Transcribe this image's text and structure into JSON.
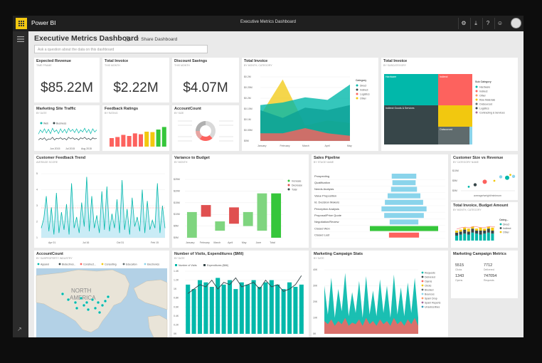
{
  "app": {
    "name": "Power BI",
    "window_title": "Executive Metrics Dashboard"
  },
  "topbar": {
    "icons": [
      "gear-icon",
      "download-icon",
      "help-icon",
      "smiley-icon"
    ],
    "gear": "⚙",
    "download": "⤓",
    "help": "?",
    "smiley": "☺"
  },
  "dashboard": {
    "title": "Executive Metrics Dashboard",
    "share_label": "Share Dashboard",
    "qa_placeholder": "Ask a question about the data on this dashboard"
  },
  "colors": {
    "teal": "#01b8aa",
    "dark": "#374649",
    "red": "#fd625e",
    "yellow": "#f2c80f",
    "gray": "#5f6b6d",
    "blue": "#8ad4eb",
    "orange": "#fe9666",
    "purple": "#a66999",
    "navy": "#3599b8",
    "green": "#35c63a"
  },
  "tiles": {
    "expected_revenue": {
      "title": "Expected Revenue",
      "subtitle": "TIME FRAME",
      "value": "$85.22M"
    },
    "total_invoice_card": {
      "title": "Total Invoice",
      "subtitle": "THIS MONTH",
      "value": "$2.22M"
    },
    "discount_savings": {
      "title": "Discount Savings",
      "subtitle": "THIS MONTH",
      "value": "$4.07M"
    },
    "marketing_site_traffic": {
      "title": "Marketing Site Traffic",
      "subtitle": "BY DATE"
    },
    "feedback_ratings": {
      "title": "Feedback Ratings",
      "subtitle": "BY RATING"
    },
    "account_count_donut": {
      "title": "AccountCount",
      "subtitle": "BY SIZE"
    },
    "total_invoice_area": {
      "title": "Total Invoice",
      "subtitle": "BY MONTH, CATEGORY"
    },
    "total_invoice_treemap": {
      "title": "Total Invoice",
      "subtitle": "BY SUBCATEGORY"
    },
    "customer_feedback_trend": {
      "title": "Customer Feedback Trend",
      "subtitle": "AVERAGE SCORE"
    },
    "variance_to_budget": {
      "title": "Variance to Budget",
      "subtitle": "BY MONTH"
    },
    "sales_pipeline": {
      "title": "Sales Pipeline",
      "subtitle": "BY STAGE NAME"
    },
    "customer_size_revenue": {
      "title": "Customer Size vs Revenue",
      "subtitle": "BY CATEGORY NAME"
    },
    "total_invoice_budget": {
      "title": "Total Invoice, Budget Amount",
      "subtitle": "BY MONTH, CATEGORY"
    },
    "account_count_map": {
      "title": "AccountCount",
      "subtitle": "BY SUBPROPERTY INDUSTRY"
    },
    "visits_expenditures": {
      "title": "Number of Visits, Expenditures ($Mil)",
      "subtitle": "BY DATE"
    },
    "marketing_campaign_stats": {
      "title": "Marketing Campaign Stats",
      "subtitle": "BY DATE"
    },
    "marketing_campaign_metrics": {
      "title": "Marketing Campaign Metrics"
    }
  },
  "traffic_legend": [
    "Web",
    "Business"
  ],
  "traffic_xticks": [
    "Jun 2015",
    "Jul 2015",
    "Aug 2015"
  ],
  "area_legend_title": "Category",
  "area_legend": [
    "Direct",
    "Indirect",
    "Logistics",
    "Other"
  ],
  "area_yticks": [
    "$0.2M",
    "$0.25M",
    "$0.2M",
    "$0.15M",
    "$0.1M",
    "$0.05M",
    "$0M"
  ],
  "area_xticks": [
    "January",
    "February",
    "March",
    "April",
    "May"
  ],
  "treemap_legend_title": "Sub Category",
  "treemap_legend": [
    "Hardware",
    "Indirect",
    "Other",
    "Raw Materials",
    "Outsourced",
    "Logistics",
    "Contracting & Services"
  ],
  "treemap_labels": [
    "Hardware",
    "Indirect",
    "Indirect Goods & Services",
    "Outsourced"
  ],
  "trend_yticks": [
    "5",
    "4",
    "3",
    "2",
    "1"
  ],
  "trend_xticks": [
    "Apr 01",
    "Jul 16",
    "Oct 31",
    "Feb 15"
  ],
  "variance_legend": [
    "Increase",
    "Decrease",
    "Total"
  ],
  "variance_yticks": [
    "$25M",
    "$20M",
    "$15M",
    "$10M",
    "$5M",
    "$0M"
  ],
  "variance_xticks": [
    "January",
    "February",
    "March",
    "April",
    "May",
    "June",
    "Total"
  ],
  "pipeline_stages": [
    "Prospecting",
    "Qualification",
    "Needs Analysis",
    "Value Proposition",
    "Id. Decision Makers",
    "Perception Analysis",
    "Proposal/Price Quote",
    "Negotiation/Review",
    "Closed Won",
    "Closed Lost"
  ],
  "scatter_yticks": [
    "$10M",
    "$5M",
    "$0M"
  ],
  "scatter_xlabel": "average/weight/minimum",
  "budget_legend_title": "Categ...",
  "budget_legend": [
    "Direct",
    "Indirect",
    "Other"
  ],
  "map_legend": [
    "Apparel",
    "Biotechnol...",
    "Construct...",
    "Consulting",
    "Education",
    "Electronics"
  ],
  "map_labels": [
    "NORTH",
    "AMERICA"
  ],
  "visits_legend": [
    "Number of Visits",
    "Expenditures ($Mil)"
  ],
  "visits_yticks": [
    "1.4K",
    "1.2K",
    "1K",
    "0.8K",
    "0.6K",
    "0.4K",
    "0.2K",
    "0K"
  ],
  "stats_legend": [
    "Requests",
    "Delivered",
    "Opens",
    "Clicks",
    "Blocked",
    "Bounces",
    "Spam Drop",
    "Spam Reports",
    "Unsubscribes"
  ],
  "stats_yticks": [
    "40K",
    "30K",
    "20K",
    "10K",
    "0K"
  ],
  "metrics": [
    {
      "value": "5515",
      "label": "Clicks"
    },
    {
      "value": "7712",
      "label": "Delivered"
    },
    {
      "value": "1343",
      "label": "Opens"
    },
    {
      "value": "747054",
      "label": "Requests"
    }
  ],
  "chart_data": [
    {
      "type": "line",
      "name": "marketing_site_traffic",
      "series": [
        {
          "name": "Web",
          "values": [
            42,
            58,
            48,
            62,
            46,
            60,
            44,
            64,
            50,
            58,
            44,
            62,
            48,
            60,
            46,
            64,
            52,
            60,
            48,
            62,
            46,
            58,
            50,
            64,
            48,
            60,
            44,
            62,
            50,
            58
          ]
        },
        {
          "name": "Business",
          "values": [
            20,
            26,
            22,
            28,
            18,
            24,
            22,
            30,
            20,
            26,
            24,
            28,
            22,
            26,
            20,
            30,
            24,
            28,
            22,
            26,
            20,
            28,
            24,
            30,
            22,
            26,
            20,
            28,
            24,
            26
          ]
        }
      ]
    },
    {
      "type": "bar",
      "name": "feedback_ratings",
      "values": [
        40,
        45,
        55,
        50,
        62,
        58,
        70,
        68,
        80,
        92
      ],
      "colors": [
        "#fd625e",
        "#fd625e",
        "#fd625e",
        "#fd625e",
        "#fd625e",
        "#fd625e",
        "#f2c80f",
        "#f2c80f",
        "#35c63a",
        "#35c63a"
      ]
    },
    {
      "type": "pie",
      "name": "account_count",
      "values": [
        38,
        22,
        15,
        25
      ],
      "colors": [
        "#d9d9d9",
        "#fd625e",
        "#e8a5a2",
        "#b0b0b0"
      ]
    },
    {
      "type": "area",
      "name": "total_invoice",
      "series": [
        {
          "name": "Direct",
          "values": [
            0.14,
            0.15,
            0.17,
            0.16,
            0.22
          ]
        },
        {
          "name": "Indirect",
          "values": [
            0.12,
            0.09,
            0.13,
            0.12,
            0.14
          ]
        },
        {
          "name": "Logistics",
          "values": [
            0.03,
            0.03,
            0.05,
            0.03,
            0.02
          ]
        },
        {
          "name": "Other",
          "values": [
            0.1,
            0.24,
            0.06,
            0.08,
            0.07
          ]
        }
      ],
      "ylim": [
        0,
        0.25
      ]
    },
    {
      "type": "line",
      "name": "customer_feedback_trend",
      "values": [
        1.6,
        2.2,
        3.6,
        1.4,
        2.9,
        1.2,
        3.8,
        1.3,
        2.6,
        1.5,
        3.1,
        1.2,
        4.4,
        1.6,
        2.3,
        1.3,
        3.2,
        1.7,
        4.8,
        1.4,
        3.6,
        1.6,
        2.4,
        1.3,
        3.9,
        1.5,
        4.2,
        1.4,
        2.5,
        1.6,
        3.4,
        1.3,
        4.6,
        1.5,
        2.8,
        1.2,
        3.5,
        1.7,
        2.3,
        1.4,
        4.0,
        1.3,
        3.3,
        1.5,
        2.1,
        1.6,
        4.4,
        1.3,
        3.0,
        1.6
      ],
      "ylim": [
        1,
        5
      ]
    },
    {
      "type": "bar",
      "name": "variance_to_budget",
      "categories": [
        "January",
        "February",
        "March",
        "April",
        "May",
        "June",
        "Total"
      ],
      "base": [
        0,
        9,
        3,
        6,
        5,
        3,
        0
      ],
      "values": [
        11,
        5,
        4,
        7,
        6,
        16,
        19
      ],
      "colors": [
        "#7fd57f",
        "#e05050",
        "#7fd57f",
        "#e05050",
        "#7fd57f",
        "#7fd57f",
        "#35c63a"
      ],
      "ylim": [
        0,
        25
      ]
    },
    {
      "type": "bar",
      "name": "sales_pipeline",
      "values": [
        36,
        34,
        38,
        48,
        56,
        66,
        58,
        42,
        100,
        44
      ],
      "colors": [
        "#8ad4eb",
        "#8ad4eb",
        "#8ad4eb",
        "#8ad4eb",
        "#8ad4eb",
        "#8ad4eb",
        "#8ad4eb",
        "#8ad4eb",
        "#35c63a",
        "#fd625e"
      ]
    },
    {
      "type": "scatter",
      "name": "customer_size_revenue",
      "x": [
        1,
        2,
        3.5,
        5,
        6,
        7,
        7.5,
        8
      ],
      "y": [
        2,
        3,
        4.5,
        5,
        7,
        6.5,
        8,
        7.2
      ],
      "ylim": [
        0,
        10
      ]
    },
    {
      "type": "bar",
      "name": "total_invoice_budget",
      "series": [
        {
          "name": "Direct",
          "values": [
            5,
            6,
            7,
            6,
            8,
            7,
            6,
            7,
            8,
            7
          ]
        },
        {
          "name": "Indirect",
          "values": [
            3,
            3,
            4,
            3,
            4,
            3,
            4,
            3,
            4,
            3
          ]
        },
        {
          "name": "Other",
          "values": [
            2,
            2,
            2,
            3,
            2,
            2,
            3,
            2,
            2,
            3
          ]
        }
      ]
    },
    {
      "type": "bar",
      "name": "visits_expenditures",
      "series": [
        {
          "name": "Number of Visits",
          "values": [
            1.1,
            1.0,
            1.2,
            1.15,
            1.05,
            1.25,
            1.1,
            1.2,
            1.0,
            1.15,
            1.1,
            1.2,
            1.05,
            1.15,
            1.2,
            1.1,
            1.0,
            1.15,
            1.05,
            1.1
          ]
        },
        {
          "name": "Expenditures ($Mil)",
          "values": [
            0.9,
            1.0,
            1.1,
            1.05,
            1.2,
            1.0,
            1.15,
            1.1,
            1.25,
            1.05,
            1.1,
            1.15,
            1.0,
            1.2,
            1.05,
            1.1,
            0.95,
            1.0,
            1.1,
            1.3
          ]
        }
      ],
      "ylim": [
        0,
        1.4
      ]
    },
    {
      "type": "area",
      "name": "marketing_campaign_stats",
      "series": [
        {
          "name": "Requests",
          "values": [
            30,
            12,
            35,
            10,
            28,
            14,
            38,
            11,
            26,
            13,
            33,
            10,
            36,
            12,
            27,
            11,
            34,
            13,
            30,
            10,
            37,
            12,
            29,
            11,
            32,
            13,
            35,
            10
          ]
        },
        {
          "name": "Bounces",
          "values": [
            8,
            6,
            9,
            5,
            8,
            6,
            10,
            5,
            7,
            6,
            9,
            5,
            10,
            6,
            8,
            5,
            9,
            6,
            8,
            5,
            10,
            6,
            8,
            5,
            9,
            6,
            10,
            5
          ]
        }
      ],
      "ylim": [
        0,
        40
      ]
    }
  ]
}
